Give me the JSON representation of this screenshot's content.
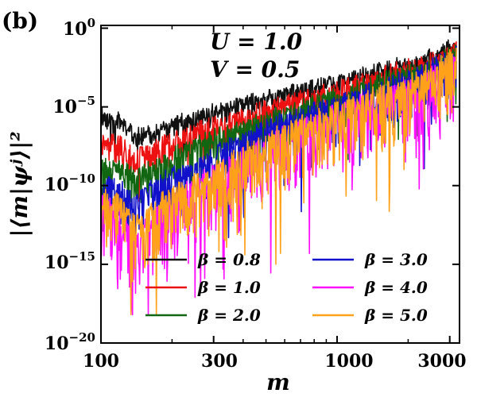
{
  "panel_label": "(b)",
  "chart_data": {
    "type": "line",
    "title": "",
    "xlabel": "m",
    "ylabel": "|⟨m|ψʲ⟩|²",
    "xscale": "log",
    "yscale": "log",
    "xlim": [
      100,
      3300
    ],
    "ylim": [
      1e-20,
      1.5
    ],
    "x_ticks": [
      {
        "value": 100,
        "label": "100"
      },
      {
        "value": 300,
        "label": "300"
      },
      {
        "value": 1000,
        "label": "1000"
      },
      {
        "value": 3000,
        "label": "3000"
      }
    ],
    "y_ticks": [
      {
        "value": 1,
        "base": "10",
        "exp": "0"
      },
      {
        "value": 1e-05,
        "base": "10",
        "exp": "−5"
      },
      {
        "value": 1e-10,
        "base": "10",
        "exp": "−10"
      },
      {
        "value": 1e-15,
        "base": "10",
        "exp": "−15"
      },
      {
        "value": 1e-20,
        "base": "10",
        "exp": "−20"
      }
    ],
    "annotations": [
      "U = 1.0",
      "V = 0.5"
    ],
    "legend_location": "lower center, two columns",
    "series": [
      {
        "name": "β = 0.8",
        "color": "#111111",
        "x": [
          100,
          120,
          140,
          170,
          200,
          250,
          300,
          400,
          500,
          700,
          1000,
          1400,
          2000,
          2600,
          3200
        ],
        "envelope_log10": [
          -5.2,
          -5.6,
          -6.5,
          -6.3,
          -5.8,
          -5.5,
          -5.0,
          -4.5,
          -4.2,
          -3.6,
          -3.2,
          -2.5,
          -2.0,
          -1.4,
          -0.8
        ],
        "noise_dex": 0.8
      },
      {
        "name": "β = 1.0",
        "color": "#ee1111",
        "x": [
          100,
          120,
          140,
          170,
          200,
          250,
          300,
          400,
          500,
          700,
          1000,
          1400,
          2000,
          2600,
          3200
        ],
        "envelope_log10": [
          -6.8,
          -7.0,
          -8.0,
          -7.2,
          -6.8,
          -6.2,
          -5.8,
          -5.3,
          -4.8,
          -4.2,
          -3.6,
          -2.8,
          -2.2,
          -1.6,
          -1.0
        ],
        "noise_dex": 1.4
      },
      {
        "name": "β = 2.0",
        "color": "#116611",
        "x": [
          100,
          120,
          140,
          170,
          200,
          250,
          300,
          400,
          500,
          700,
          1000,
          1400,
          2000,
          2600,
          3200
        ],
        "envelope_log10": [
          -8.6,
          -8.4,
          -9.2,
          -8.4,
          -7.8,
          -7.2,
          -6.6,
          -6.0,
          -5.4,
          -4.8,
          -4.0,
          -3.2,
          -2.6,
          -1.9,
          -1.2
        ],
        "noise_dex": 1.6
      },
      {
        "name": "β = 3.0",
        "color": "#1111cc",
        "x": [
          100,
          120,
          140,
          170,
          200,
          250,
          300,
          400,
          500,
          700,
          1000,
          1400,
          2000,
          2600,
          3200
        ],
        "envelope_log10": [
          -9.6,
          -9.8,
          -10.4,
          -9.6,
          -9.0,
          -8.4,
          -7.6,
          -6.8,
          -6.0,
          -5.2,
          -4.4,
          -3.6,
          -2.9,
          -2.1,
          -1.4
        ],
        "noise_dex": 2.2
      },
      {
        "name": "β = 4.0",
        "color": "#ff11ff",
        "x": [
          100,
          120,
          140,
          170,
          200,
          250,
          300,
          400,
          500,
          700,
          1000,
          1400,
          2000,
          2600,
          3200
        ],
        "envelope_log10": [
          -10.6,
          -11.2,
          -13.0,
          -11.5,
          -10.5,
          -9.6,
          -8.8,
          -7.8,
          -7.0,
          -6.0,
          -5.0,
          -4.2,
          -3.4,
          -2.5,
          -1.6
        ],
        "noise_dex": 3.0
      },
      {
        "name": "β = 5.0",
        "color": "#ffa21a",
        "x": [
          100,
          120,
          140,
          170,
          200,
          250,
          300,
          400,
          500,
          700,
          1000,
          1400,
          2000,
          2600,
          3200
        ],
        "envelope_log10": [
          -10.2,
          -10.8,
          -12.0,
          -11.0,
          -10.2,
          -9.4,
          -8.6,
          -7.6,
          -6.8,
          -5.8,
          -4.8,
          -4.0,
          -3.2,
          -2.3,
          -1.2
        ],
        "noise_dex": 2.8
      }
    ]
  }
}
